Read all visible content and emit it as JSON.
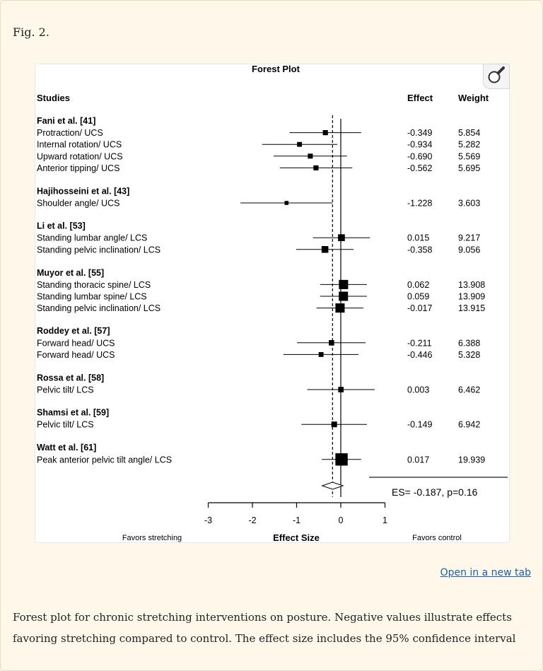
{
  "figure_label": "Fig. 2.",
  "open_link": "Open in a new tab",
  "caption": "Forest plot for chronic stretching interventions on posture. Negative values illustrate effects favoring stretching compared to control. The effect size includes the 95% confidence interval",
  "icons": {
    "magnify": "magnify-icon"
  },
  "chart_data": {
    "type": "forest",
    "title": "Forest Plot",
    "column_headers": {
      "studies": "Studies",
      "effect": "Effect",
      "weight": "Weight"
    },
    "groups": [
      {
        "study": "Fani et al. [41]",
        "rows": [
          {
            "label": "Protraction/ UCS",
            "effect": -0.349,
            "effect_text": "-0.349",
            "weight": 5.854,
            "weight_text": "5.854",
            "ci": [
              -1.16,
              0.46
            ]
          },
          {
            "label": "Internal rotation/ UCS",
            "effect": -0.934,
            "effect_text": "-0.934",
            "weight": 5.282,
            "weight_text": "5.282",
            "ci": [
              -1.78,
              -0.08
            ]
          },
          {
            "label": "Upward rotation/ UCS",
            "effect": -0.69,
            "effect_text": "-0.690",
            "weight": 5.569,
            "weight_text": "5.569",
            "ci": [
              -1.52,
              0.14
            ]
          },
          {
            "label": "Anterior tipping/ UCS",
            "effect": -0.562,
            "effect_text": "-0.562",
            "weight": 5.695,
            "weight_text": "5.695",
            "ci": [
              -1.38,
              0.26
            ]
          }
        ]
      },
      {
        "study": "Hajihosseini et al. [43]",
        "rows": [
          {
            "label": "Shoulder angle/ UCS",
            "effect": -1.228,
            "effect_text": "-1.228",
            "weight": 3.603,
            "weight_text": "3.603",
            "ci": [
              -2.27,
              -0.19
            ]
          }
        ]
      },
      {
        "study": "Li et al. [53]",
        "rows": [
          {
            "label": "Standing lumbar angle/ LCS",
            "effect": 0.015,
            "effect_text": "0.015",
            "weight": 9.217,
            "weight_text": "9.217",
            "ci": [
              -0.63,
              0.66
            ]
          },
          {
            "label": "Standing pelvic inclination/ LCS",
            "effect": -0.358,
            "effect_text": "-0.358",
            "weight": 9.056,
            "weight_text": "9.056",
            "ci": [
              -1.01,
              0.29
            ]
          }
        ]
      },
      {
        "study": "Muyor et al. [55]",
        "rows": [
          {
            "label": "Standing thoracic spine/ LCS",
            "effect": 0.062,
            "effect_text": "0.062",
            "weight": 13.908,
            "weight_text": "13.908",
            "ci": [
              -0.47,
              0.59
            ]
          },
          {
            "label": "Standing lumbar spine/ LCS",
            "effect": 0.059,
            "effect_text": "0.059",
            "weight": 13.909,
            "weight_text": "13.909",
            "ci": [
              -0.47,
              0.59
            ]
          },
          {
            "label": "Standing pelvic inclination/ LCS",
            "effect": -0.017,
            "effect_text": "-0.017",
            "weight": 13.915,
            "weight_text": "13.915",
            "ci": [
              -0.55,
              0.51
            ]
          }
        ]
      },
      {
        "study": "Roddey et al. [57]",
        "rows": [
          {
            "label": "Forward head/ UCS",
            "effect": -0.211,
            "effect_text": "-0.211",
            "weight": 6.388,
            "weight_text": "6.388",
            "ci": [
              -0.99,
              0.56
            ]
          },
          {
            "label": "Forward head/ UCS",
            "effect": -0.446,
            "effect_text": "-0.446",
            "weight": 5.328,
            "weight_text": "5.328",
            "ci": [
              -1.3,
              0.4
            ]
          }
        ]
      },
      {
        "study": "Rossa et al. [58]",
        "rows": [
          {
            "label": "Pelvic tilt/ LCS",
            "effect": 0.003,
            "effect_text": "0.003",
            "weight": 6.462,
            "weight_text": "6.462",
            "ci": [
              -0.76,
              0.77
            ]
          }
        ]
      },
      {
        "study": "Shamsi et al. [59]",
        "rows": [
          {
            "label": "Pelvic tilt/ LCS",
            "effect": -0.149,
            "effect_text": "-0.149",
            "weight": 6.942,
            "weight_text": "6.942",
            "ci": [
              -0.89,
              0.59
            ]
          }
        ]
      },
      {
        "study": "Watt et al. [61]",
        "rows": [
          {
            "label": "Peak anterior pelvic tilt angle/ LCS",
            "effect": 0.017,
            "effect_text": "0.017",
            "weight": 19.939,
            "weight_text": "19.939",
            "ci": [
              -0.43,
              0.46
            ]
          }
        ]
      }
    ],
    "summary": {
      "es": -0.187,
      "ci": [
        -0.42,
        0.05
      ],
      "label": "ES= -0.187, p=0.16"
    },
    "x_axis": {
      "min": -3,
      "max": 1,
      "ticks": [
        -3,
        -2,
        -1,
        0,
        1
      ],
      "tick_labels": [
        "-3",
        "-2",
        "-1",
        "0",
        "1"
      ],
      "label": "Effect Size"
    },
    "favors": {
      "left": "Favors stretching",
      "right": "Favors control"
    }
  }
}
